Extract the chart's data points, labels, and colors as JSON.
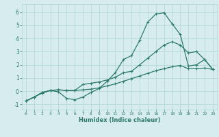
{
  "xlabel": "Humidex (Indice chaleur)",
  "xlim": [
    -0.5,
    23.5
  ],
  "ylim": [
    -1.4,
    6.6
  ],
  "xticks": [
    0,
    1,
    2,
    3,
    4,
    5,
    6,
    7,
    8,
    9,
    10,
    11,
    12,
    13,
    14,
    15,
    16,
    17,
    18,
    19,
    20,
    21,
    22,
    23
  ],
  "yticks": [
    -1,
    0,
    1,
    2,
    3,
    4,
    5,
    6
  ],
  "line_color": "#2d7a6a",
  "bg_color": "#d6ecee",
  "grid_color": "#b0d4d8",
  "line1_x": [
    0,
    1,
    2,
    3,
    4,
    5,
    6,
    7,
    8,
    9,
    10,
    11,
    12,
    13,
    14,
    15,
    16,
    17,
    18,
    19,
    20,
    21,
    22,
    23
  ],
  "line1_y": [
    -0.75,
    -0.45,
    -0.15,
    0.05,
    -0.05,
    -0.55,
    -0.65,
    -0.45,
    -0.1,
    0.2,
    0.75,
    1.4,
    2.4,
    2.7,
    3.85,
    5.25,
    5.85,
    5.95,
    5.1,
    4.3,
    1.9,
    2.0,
    2.4,
    1.65
  ],
  "line2_x": [
    0,
    1,
    2,
    3,
    4,
    5,
    6,
    7,
    8,
    9,
    10,
    11,
    12,
    13,
    14,
    15,
    16,
    17,
    18,
    19,
    20,
    21,
    22,
    23
  ],
  "line2_y": [
    -0.75,
    -0.45,
    -0.1,
    0.05,
    0.1,
    0.05,
    0.05,
    0.5,
    0.6,
    0.7,
    0.85,
    1.05,
    1.4,
    1.5,
    2.0,
    2.5,
    3.0,
    3.5,
    3.75,
    3.5,
    2.9,
    3.0,
    2.4,
    1.65
  ],
  "line3_x": [
    0,
    1,
    2,
    3,
    4,
    5,
    6,
    7,
    8,
    9,
    10,
    11,
    12,
    13,
    14,
    15,
    16,
    17,
    18,
    19,
    20,
    21,
    22,
    23
  ],
  "line3_y": [
    -0.75,
    -0.45,
    -0.1,
    0.05,
    0.1,
    0.05,
    0.05,
    0.1,
    0.15,
    0.25,
    0.4,
    0.55,
    0.75,
    0.95,
    1.15,
    1.35,
    1.55,
    1.7,
    1.85,
    1.95,
    1.7,
    1.7,
    1.75,
    1.65
  ]
}
